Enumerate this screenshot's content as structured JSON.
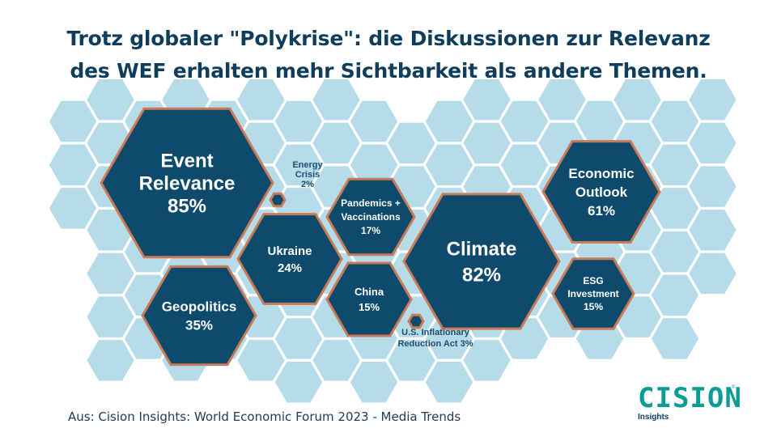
{
  "title": {
    "line1": "Trotz globaler \"Polykrise\": die Diskussionen zur Relevanz",
    "line2": "des WEF erhalten mehr Sichtbarkeit als andere Themen."
  },
  "topics": [
    {
      "id": "event-relevance",
      "lines": [
        "Event",
        "Relevance"
      ],
      "value": "85%",
      "pct": 85
    },
    {
      "id": "climate",
      "lines": [
        "Climate"
      ],
      "value": "82%",
      "pct": 82
    },
    {
      "id": "economic-outlook",
      "lines": [
        "Economic",
        "Outlook"
      ],
      "value": "61%",
      "pct": 61
    },
    {
      "id": "geopolitics",
      "lines": [
        "Geopolitics"
      ],
      "value": "35%",
      "pct": 35
    },
    {
      "id": "ukraine",
      "lines": [
        "Ukraine"
      ],
      "value": "24%",
      "pct": 24
    },
    {
      "id": "pandemics-vaccinations",
      "lines": [
        "Pandemics +",
        "Vaccinations"
      ],
      "value": "17%",
      "pct": 17
    },
    {
      "id": "china",
      "lines": [
        "China"
      ],
      "value": "15%",
      "pct": 15
    },
    {
      "id": "esg-investment",
      "lines": [
        "ESG",
        "Investment"
      ],
      "value": "15%",
      "pct": 15
    },
    {
      "id": "energy-crisis",
      "lines": [
        "Energy",
        "Crisis"
      ],
      "value": "2%",
      "pct": 2
    },
    {
      "id": "us-inflationary-reduction-act",
      "lines": [
        "U.S. Inflationary",
        "Reduction Act"
      ],
      "value": "3%",
      "pct": 3
    }
  ],
  "source": "Aus: Cision Insights: World Economic Forum 2023 - Media Trends",
  "logo": {
    "word": "CISION",
    "tm": "®",
    "sub": "Insights"
  },
  "colors": {
    "title": "#0f3d5c",
    "hex_dark": "#0e4a6b",
    "hex_border": "#c97a57",
    "hex_light": "#b6dcea",
    "logo": "#0b9d95"
  }
}
